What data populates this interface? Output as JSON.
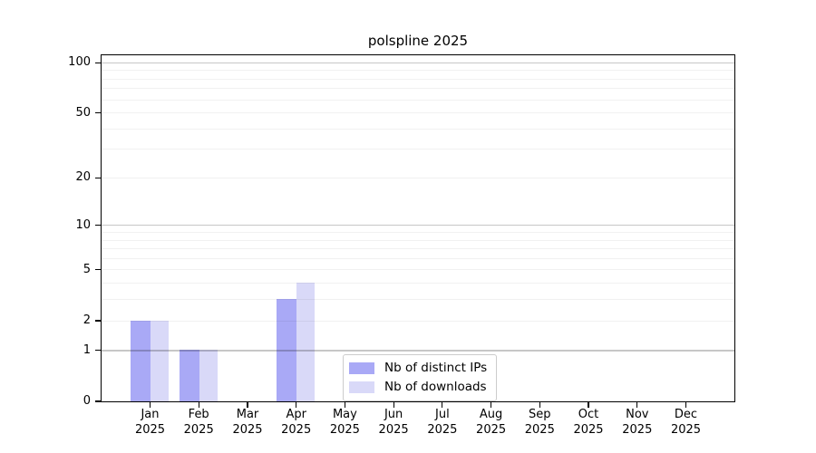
{
  "chart_data": {
    "type": "bar",
    "title": "polspline 2025",
    "categories": [
      "Jan",
      "Feb",
      "Mar",
      "Apr",
      "May",
      "Jun",
      "Jul",
      "Aug",
      "Sep",
      "Oct",
      "Nov",
      "Dec"
    ],
    "category_year": "2025",
    "series": [
      {
        "name": "Nb of distinct IPs",
        "color": "#a9a9f6",
        "values": [
          2,
          1,
          0,
          3,
          0,
          0,
          0,
          0,
          0,
          0,
          0,
          0
        ]
      },
      {
        "name": "Nb of downloads",
        "color": "#d9d9f8",
        "values": [
          2,
          1,
          0,
          4,
          0,
          0,
          0,
          0,
          0,
          0,
          0,
          0
        ]
      }
    ],
    "xlabel": "",
    "ylabel": "",
    "yscale": "log1p",
    "ylim": [
      0,
      110
    ],
    "yticks": [
      0,
      1,
      2,
      5,
      10,
      20,
      50,
      100
    ],
    "grid_major": [
      1,
      10,
      100
    ],
    "grid_minor": [
      2,
      3,
      4,
      5,
      6,
      7,
      8,
      9,
      20,
      30,
      40,
      50,
      60,
      70,
      80,
      90
    ],
    "grid": "on",
    "legend_position": "bottom-center-inside"
  },
  "colors": {
    "axis": "#000000",
    "grid_major": "#c7c7c7",
    "grid_minor": "#f0f0f0",
    "legend_border": "#cccccc",
    "background": "#ffffff"
  }
}
